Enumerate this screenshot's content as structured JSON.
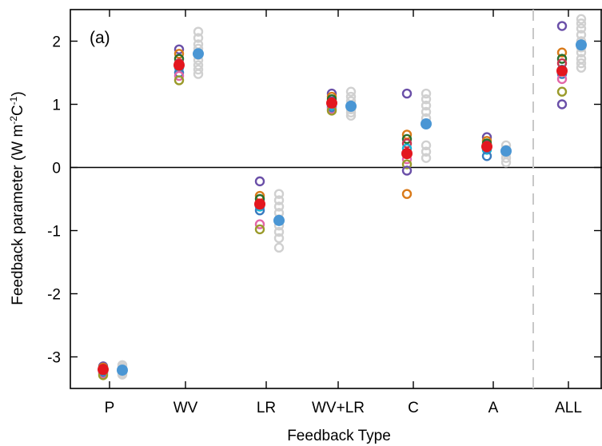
{
  "chart_data": {
    "type": "scatter",
    "panel_label": "(a)",
    "xlabel": "Feedback Type",
    "ylabel": "Feedback parameter (W m",
    "ylabel_sup1": "-2",
    "ylabel_mid": "C",
    "ylabel_sup2": "-1",
    "ylabel_end": ")",
    "categories": [
      "P",
      "WV",
      "LR",
      "WV+LR",
      "C",
      "A",
      "ALL"
    ],
    "yticks": [
      {
        "value": 2,
        "label": "2"
      },
      {
        "value": 1,
        "label": "1"
      },
      {
        "value": 0,
        "label": "0"
      },
      {
        "value": -1,
        "label": "-1"
      },
      {
        "value": -2,
        "label": "-2"
      },
      {
        "value": -3,
        "label": "-3"
      }
    ],
    "ylim": [
      -3.5,
      2.5
    ],
    "zero_line": true,
    "separator_between": [
      "A",
      "ALL"
    ],
    "grid": false,
    "legend": "none",
    "series_colors": [
      "#6a4fa8",
      "#d97a1a",
      "#2b6e2b",
      "#c8344d",
      "#1ab2d4",
      "#3a7bbf",
      "#e266a8",
      "#9a9a2a"
    ],
    "highlight": {
      "red": "#e3171f",
      "blue": "#4a96d4",
      "grey": "#d0d0d0"
    },
    "series": [
      {
        "category": "P",
        "colored": [
          -3.15,
          -3.17,
          -3.19,
          -3.21,
          -3.23,
          -3.25,
          -3.27,
          -3.29
        ],
        "red": -3.2,
        "blue": -3.21,
        "grey": [
          -3.13,
          -3.16,
          -3.19,
          -3.22,
          -3.25,
          -3.28
        ]
      },
      {
        "category": "WV",
        "colored": [
          1.87,
          1.8,
          1.72,
          1.65,
          1.58,
          1.5,
          1.45,
          1.38
        ],
        "red": 1.62,
        "blue": 1.8,
        "grey": [
          2.15,
          2.05,
          1.95,
          1.88,
          1.78,
          1.7,
          1.62,
          1.55,
          1.48
        ]
      },
      {
        "category": "LR",
        "colored": [
          -0.22,
          -0.45,
          -0.5,
          -0.58,
          -0.62,
          -0.68,
          -0.9,
          -0.98
        ],
        "red": -0.58,
        "blue": -0.84,
        "grey": [
          -0.42,
          -0.52,
          -0.62,
          -0.72,
          -0.82,
          -0.92,
          -1.02,
          -1.12,
          -1.27
        ]
      },
      {
        "category": "WV+LR",
        "colored": [
          1.17,
          1.12,
          1.08,
          1.03,
          0.98,
          0.95,
          0.92,
          0.9
        ],
        "red": 1.02,
        "blue": 0.97,
        "grey": [
          1.2,
          1.12,
          1.05,
          0.98,
          0.92,
          0.87,
          0.82
        ]
      },
      {
        "category": "C",
        "colored": [
          1.17,
          0.52,
          0.45,
          0.38,
          0.3,
          0.22,
          0.13,
          0.05,
          -0.05,
          -0.42
        ],
        "red": 0.22,
        "blue": 0.69,
        "grey": [
          1.17,
          1.08,
          0.98,
          0.88,
          0.78,
          0.35,
          0.25,
          0.15
        ]
      },
      {
        "category": "A",
        "colored": [
          0.48,
          0.42,
          0.38,
          0.33,
          0.28,
          0.18
        ],
        "red": 0.33,
        "blue": 0.26,
        "grey": [
          0.35,
          0.28,
          0.22,
          0.15,
          0.08
        ]
      },
      {
        "category": "ALL",
        "colored": [
          2.24,
          1.82,
          1.72,
          1.65,
          1.55,
          1.48,
          1.4,
          1.2,
          1.0
        ],
        "red": 1.53,
        "blue": 1.94,
        "grey": [
          2.35,
          2.28,
          2.2,
          2.1,
          2.0,
          1.9,
          1.82,
          1.72,
          1.65,
          1.58
        ]
      }
    ]
  }
}
